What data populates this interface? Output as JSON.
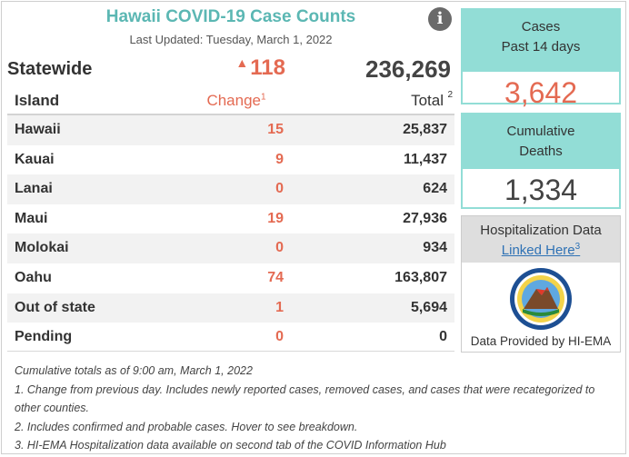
{
  "header": {
    "title": "Hawaii COVID-19 Case Counts",
    "updated": "Last Updated: Tuesday, March 1, 2022"
  },
  "statewide": {
    "label": "Statewide",
    "change_arrow": "▲",
    "change": "118",
    "total": "236,269"
  },
  "table": {
    "col_island": "Island",
    "col_change": "Change",
    "col_change_sup": "1",
    "col_total": "Total",
    "col_total_sup": "2",
    "rows": [
      {
        "island": "Hawaii",
        "change": "15",
        "total": "25,837"
      },
      {
        "island": "Kauai",
        "change": "9",
        "total": "11,437"
      },
      {
        "island": "Lanai",
        "change": "0",
        "total": "624"
      },
      {
        "island": "Maui",
        "change": "19",
        "total": "27,936"
      },
      {
        "island": "Molokai",
        "change": "0",
        "total": "934"
      },
      {
        "island": "Oahu",
        "change": "74",
        "total": "163,807"
      },
      {
        "island": "Out of state",
        "change": "1",
        "total": "5,694"
      },
      {
        "island": "Pending",
        "change": "0",
        "total": "0"
      }
    ]
  },
  "notes": [
    "Cumulative totals as of 9:00 am, March 1, 2022",
    "1. Change from previous day. Includes newly reported cases, removed cases, and cases that were recategorized to other counties.",
    "2. Includes confirmed and probable cases. Hover to see breakdown.",
    "3. HI-EMA Hospitalization data available on second tab of the COVID Information Hub"
  ],
  "cards": {
    "cases_line1": "Cases",
    "cases_line2": "Past 14 days",
    "cases_value": "3,642",
    "deaths_line1": "Cumulative",
    "deaths_line2": "Deaths",
    "deaths_value": "1,334",
    "hosp_title": "Hospitalization Data",
    "hosp_link": "Linked Here",
    "hosp_link_sup": "3",
    "hosp_provider": "Data Provided by HI-EMA"
  },
  "icons": {
    "info": "info-icon",
    "seal": "hi-ema-seal-icon"
  },
  "colors": {
    "teal": "#92ddd6",
    "title_teal": "#5bb7b3",
    "change_red": "#e46a52"
  }
}
